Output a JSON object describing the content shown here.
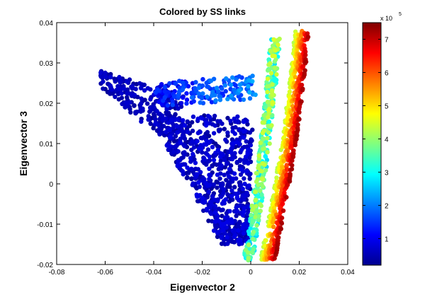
{
  "chart_data": {
    "type": "scatter",
    "title": "Colored by SS links",
    "xlabel": "Eigenvector 2",
    "ylabel": "Eigenvector 3",
    "xlim": [
      -0.08,
      0.04
    ],
    "ylim": [
      -0.02,
      0.04
    ],
    "x_ticks": [
      "-0.08",
      "-0.06",
      "-0.04",
      "-0.02",
      "0",
      "0.02",
      "0.04"
    ],
    "y_ticks": [
      "-0.02",
      "-0.01",
      "0",
      "0.01",
      "0.02",
      "0.03",
      "0.04"
    ],
    "grid": false,
    "colormap": "jet",
    "colorbar": {
      "multiplier": "x 10",
      "exponent": "5",
      "range": [
        20000,
        750000
      ],
      "tick_labels": [
        "1",
        "2",
        "3",
        "4",
        "5",
        "6",
        "7"
      ],
      "tick_values": [
        1,
        2,
        3,
        4,
        5,
        6,
        7
      ]
    },
    "marker_color_example": "#00008f",
    "point_regions": [
      {
        "region": "left wing (dark blue)",
        "x_range": [
          -0.062,
          -0.03
        ],
        "y_range": [
          0.012,
          0.031
        ],
        "color_value": 50000
      },
      {
        "region": "upper arm (blue)",
        "x_range": [
          -0.04,
          0.005
        ],
        "y_range": [
          0.018,
          0.028
        ],
        "color_value": 90000
      },
      {
        "region": "central body (dark blue)",
        "x_range": [
          -0.045,
          0.0
        ],
        "y_range": [
          -0.015,
          0.02
        ],
        "color_value": 60000
      },
      {
        "region": "inner band (cyan/green)",
        "x_range": [
          -0.002,
          0.012
        ],
        "y_range": [
          -0.019,
          0.037
        ],
        "color_value": 300000
      },
      {
        "region": "right band (yellow/red)",
        "x_range": [
          0.005,
          0.022
        ],
        "y_range": [
          -0.019,
          0.038
        ],
        "color_value": 650000
      }
    ]
  },
  "colors": {
    "background": "#ffffff",
    "axis": "#000000"
  }
}
